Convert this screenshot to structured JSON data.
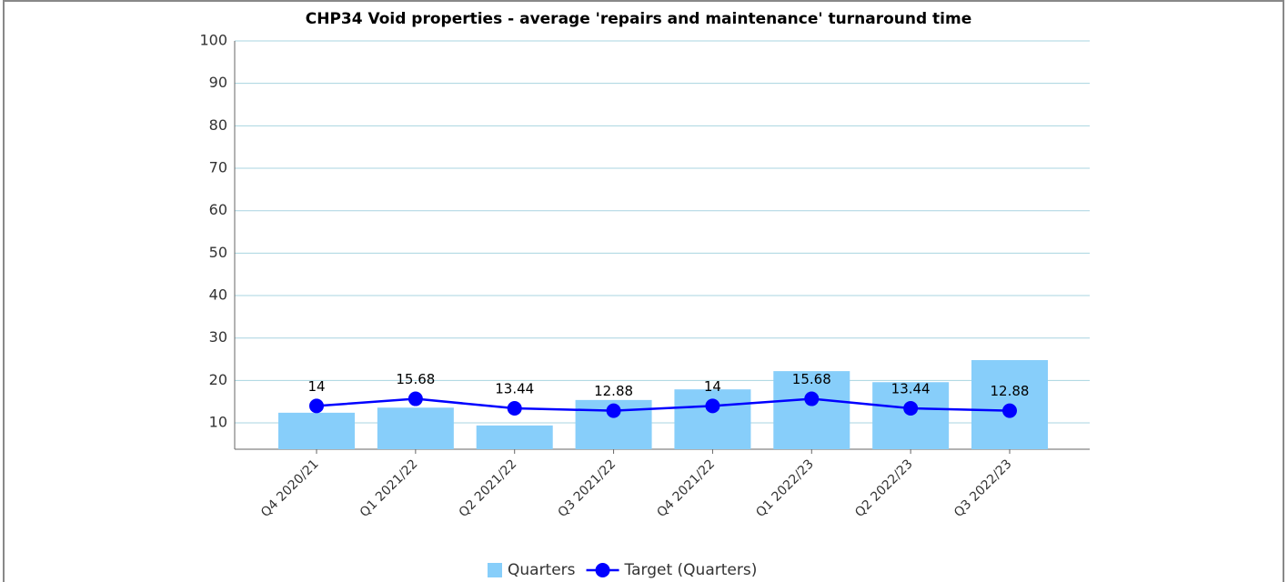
{
  "chart_data": {
    "type": "bar_line",
    "title": "CHP34 Void properties - average 'repairs and maintenance' turnaround time",
    "categories": [
      "Q4 2020/21",
      "Q1 2021/22",
      "Q2 2021/22",
      "Q3 2021/22",
      "Q4 2021/22",
      "Q1 2022/23",
      "Q2 2022/23",
      "Q3 2022/23"
    ],
    "series": [
      {
        "name": "Quarters",
        "type": "bar",
        "color": "#87cefa",
        "values": [
          12.4,
          13.6,
          9.4,
          15.4,
          17.9,
          22.2,
          19.6,
          24.8
        ]
      },
      {
        "name": "Target (Quarters)",
        "type": "line",
        "color": "#0000ff",
        "values": [
          14,
          15.68,
          13.44,
          12.88,
          14,
          15.68,
          13.44,
          12.88
        ]
      }
    ],
    "ylim": [
      3.8,
      100
    ],
    "yticks": [
      10,
      20,
      30,
      40,
      50,
      60,
      70,
      80,
      90,
      100
    ],
    "grid": true,
    "legend": "bottom"
  }
}
